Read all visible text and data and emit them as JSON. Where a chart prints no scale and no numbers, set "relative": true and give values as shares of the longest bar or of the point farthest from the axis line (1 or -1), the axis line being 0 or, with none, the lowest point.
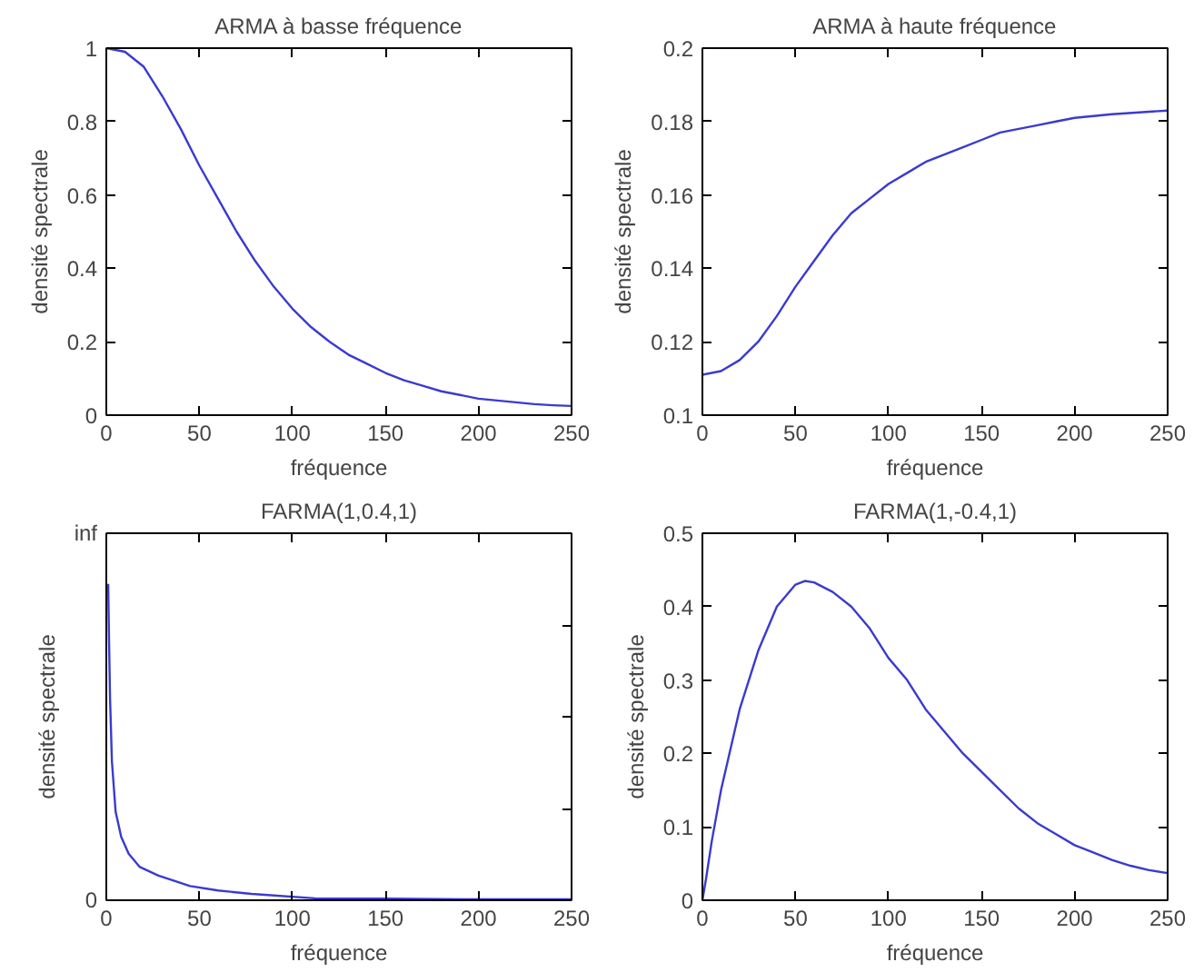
{
  "chart_data": [
    {
      "type": "line",
      "title": "ARMA à basse fréquence",
      "xlabel": "fréquence",
      "ylabel": "densité spectrale",
      "xlim": [
        0,
        250
      ],
      "ylim": [
        0,
        1
      ],
      "xticks": [
        0,
        50,
        100,
        150,
        200,
        250
      ],
      "yticks": [
        0,
        0.2,
        0.4,
        0.6,
        0.8,
        1
      ],
      "grid": false,
      "x": [
        0,
        10,
        20,
        30,
        40,
        50,
        60,
        70,
        80,
        90,
        100,
        110,
        120,
        130,
        140,
        150,
        160,
        170,
        180,
        190,
        200,
        210,
        220,
        230,
        240,
        250
      ],
      "series": [
        {
          "color": "#3a3ad0",
          "values": [
            1.0,
            0.99,
            0.95,
            0.87,
            0.78,
            0.68,
            0.59,
            0.5,
            0.42,
            0.35,
            0.29,
            0.24,
            0.2,
            0.165,
            0.14,
            0.115,
            0.095,
            0.08,
            0.065,
            0.055,
            0.045,
            0.04,
            0.035,
            0.03,
            0.027,
            0.025
          ]
        }
      ]
    },
    {
      "type": "line",
      "title": "ARMA à haute fréquence",
      "xlabel": "fréquence",
      "ylabel": "densité spectrale",
      "xlim": [
        0,
        250
      ],
      "ylim": [
        0.1,
        0.2
      ],
      "xticks": [
        0,
        50,
        100,
        150,
        200,
        250
      ],
      "yticks": [
        0.1,
        0.12,
        0.14,
        0.16,
        0.18,
        0.2
      ],
      "grid": false,
      "x": [
        0,
        10,
        20,
        30,
        40,
        50,
        60,
        70,
        80,
        90,
        100,
        110,
        120,
        130,
        140,
        150,
        160,
        170,
        180,
        190,
        200,
        220,
        250
      ],
      "series": [
        {
          "color": "#3a3ad0",
          "values": [
            0.111,
            0.112,
            0.115,
            0.12,
            0.127,
            0.135,
            0.142,
            0.149,
            0.155,
            0.159,
            0.163,
            0.166,
            0.169,
            0.171,
            0.173,
            0.175,
            0.177,
            0.178,
            0.179,
            0.18,
            0.181,
            0.182,
            0.183
          ]
        }
      ]
    },
    {
      "type": "line",
      "title": "FARMA(1,0.4,1)",
      "xlabel": "fréquence",
      "ylabel": "densité spectrale",
      "xlim": [
        0,
        250
      ],
      "xticks": [
        0,
        50,
        100,
        150,
        200,
        250
      ],
      "relative": true,
      "annotations": [
        "inf",
        "0"
      ],
      "grid": false,
      "x": [
        1,
        1.5,
        2,
        3,
        5,
        8,
        12,
        18,
        28,
        45,
        60,
        78,
        112,
        150,
        200,
        250
      ],
      "series": [
        {
          "color": "#3a3ad0",
          "values": [
            1,
            0.81,
            0.64,
            0.44,
            0.28,
            0.2,
            0.147,
            0.105,
            0.078,
            0.045,
            0.031,
            0.02,
            0.006,
            0.005,
            0.003,
            0.003
          ]
        }
      ]
    },
    {
      "type": "line",
      "title": "FARMA(1,-0.4,1)",
      "xlabel": "fréquence",
      "ylabel": "densité spectrale",
      "xlim": [
        0,
        250
      ],
      "ylim": [
        0,
        0.5
      ],
      "xticks": [
        0,
        50,
        100,
        150,
        200,
        250
      ],
      "yticks": [
        0,
        0.1,
        0.2,
        0.3,
        0.4,
        0.5
      ],
      "grid": false,
      "x": [
        0,
        2,
        5,
        10,
        20,
        30,
        40,
        50,
        55,
        60,
        70,
        80,
        90,
        100,
        110,
        120,
        130,
        140,
        150,
        160,
        170,
        180,
        190,
        200,
        210,
        220,
        230,
        240,
        250
      ],
      "series": [
        {
          "color": "#3a3ad0",
          "values": [
            0,
            0.03,
            0.08,
            0.15,
            0.26,
            0.34,
            0.4,
            0.43,
            0.435,
            0.433,
            0.42,
            0.4,
            0.37,
            0.33,
            0.3,
            0.26,
            0.23,
            0.2,
            0.175,
            0.15,
            0.125,
            0.105,
            0.09,
            0.075,
            0.065,
            0.055,
            0.047,
            0.041,
            0.037
          ]
        }
      ]
    }
  ]
}
